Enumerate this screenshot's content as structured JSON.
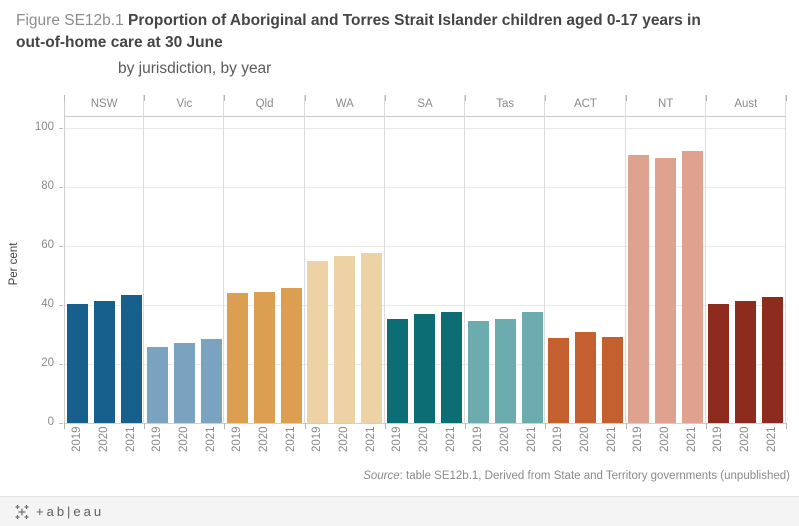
{
  "title": {
    "prefix": "Figure SE12b.1",
    "bold_line1": "Proportion of Aboriginal and Torres Strait Islander children aged 0-17 years in",
    "bold_line2": "out-of-home care at 30 June",
    "subtitle": "by jurisdiction, by year"
  },
  "chart_data": {
    "type": "bar",
    "title": "Proportion of Aboriginal and Torres Strait Islander children aged 0-17 years in out-of-home care at 30 June, by jurisdiction, by year",
    "ylabel": "Per cent",
    "xlabel": "",
    "ylim": [
      0,
      104
    ],
    "yticks": [
      0,
      20,
      40,
      60,
      80,
      100
    ],
    "grid": true,
    "legend_position": "none",
    "categories": [
      "2019",
      "2020",
      "2021"
    ],
    "series": [
      {
        "name": "NSW",
        "color": "#175f8d",
        "values": [
          40.3,
          41.5,
          43.3
        ]
      },
      {
        "name": "Vic",
        "color": "#7aa3bf",
        "values": [
          25.9,
          27.2,
          28.4
        ]
      },
      {
        "name": "Qld",
        "color": "#dc9e51",
        "values": [
          44.1,
          44.5,
          45.8
        ]
      },
      {
        "name": "WA",
        "color": "#edd2a6",
        "values": [
          55.1,
          56.6,
          57.7
        ]
      },
      {
        "name": "SA",
        "color": "#0c6e74",
        "values": [
          35.4,
          36.9,
          37.6
        ]
      },
      {
        "name": "Tas",
        "color": "#6cacae",
        "values": [
          34.6,
          35.2,
          37.6
        ]
      },
      {
        "name": "ACT",
        "color": "#c4602f",
        "values": [
          28.9,
          30.7,
          29.2
        ]
      },
      {
        "name": "NT",
        "color": "#dfa28e",
        "values": [
          90.9,
          89.9,
          92.2
        ]
      },
      {
        "name": "Aust",
        "color": "#8d2c1e",
        "values": [
          40.3,
          41.3,
          42.7
        ]
      }
    ]
  },
  "source": {
    "label": "Source",
    "text": ": table SE12b.1, Derived from State and Territory governments (unpublished)"
  },
  "toolbar": {
    "logo_text": "+ab|eau"
  }
}
